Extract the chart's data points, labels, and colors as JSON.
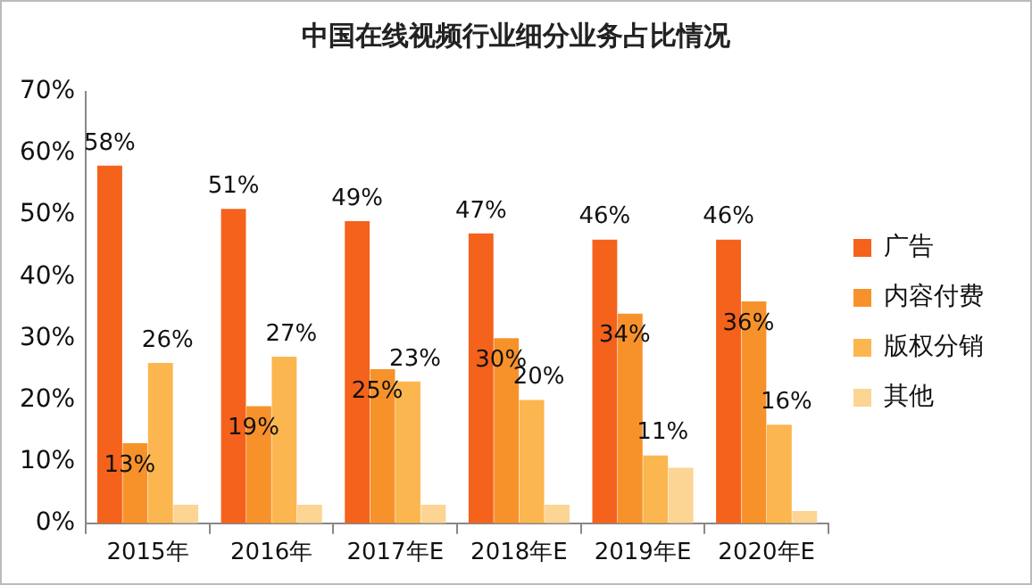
{
  "chart_data": {
    "type": "bar",
    "title": "中国在线视频行业细分业务占比情况",
    "categories": [
      "2015年",
      "2016年",
      "2017年E",
      "2018年E",
      "2019年E",
      "2020年E"
    ],
    "series": [
      {
        "name": "广告",
        "color": "#f4621c",
        "values": [
          58,
          51,
          49,
          47,
          46,
          46
        ],
        "value_labels": [
          "58%",
          "51%",
          "49%",
          "47%",
          "46%",
          "46%"
        ]
      },
      {
        "name": "内容付费",
        "color": "#f7922b",
        "values": [
          13,
          19,
          25,
          30,
          34,
          36
        ],
        "value_labels": [
          "13%",
          "19%",
          "25%",
          "30%",
          "34%",
          "36%"
        ]
      },
      {
        "name": "版权分销",
        "color": "#fbb64f",
        "values": [
          26,
          27,
          23,
          20,
          11,
          16
        ],
        "value_labels": [
          "26%",
          "27%",
          "23%",
          "20%",
          "11%",
          "16%"
        ]
      },
      {
        "name": "其他",
        "color": "#fcd494",
        "values": [
          3,
          3,
          3,
          3,
          9,
          2
        ]
      }
    ],
    "ylim": [
      0,
      70
    ],
    "yticks": [
      {
        "value": 0,
        "label": "0%"
      },
      {
        "value": 10,
        "label": "10%"
      },
      {
        "value": 20,
        "label": "20%"
      },
      {
        "value": 30,
        "label": "30%"
      },
      {
        "value": 40,
        "label": "40%"
      },
      {
        "value": 50,
        "label": "50%"
      },
      {
        "value": 60,
        "label": "60%"
      },
      {
        "value": 70,
        "label": "70%"
      }
    ],
    "grid": false,
    "legend": "right",
    "marker": "square"
  }
}
